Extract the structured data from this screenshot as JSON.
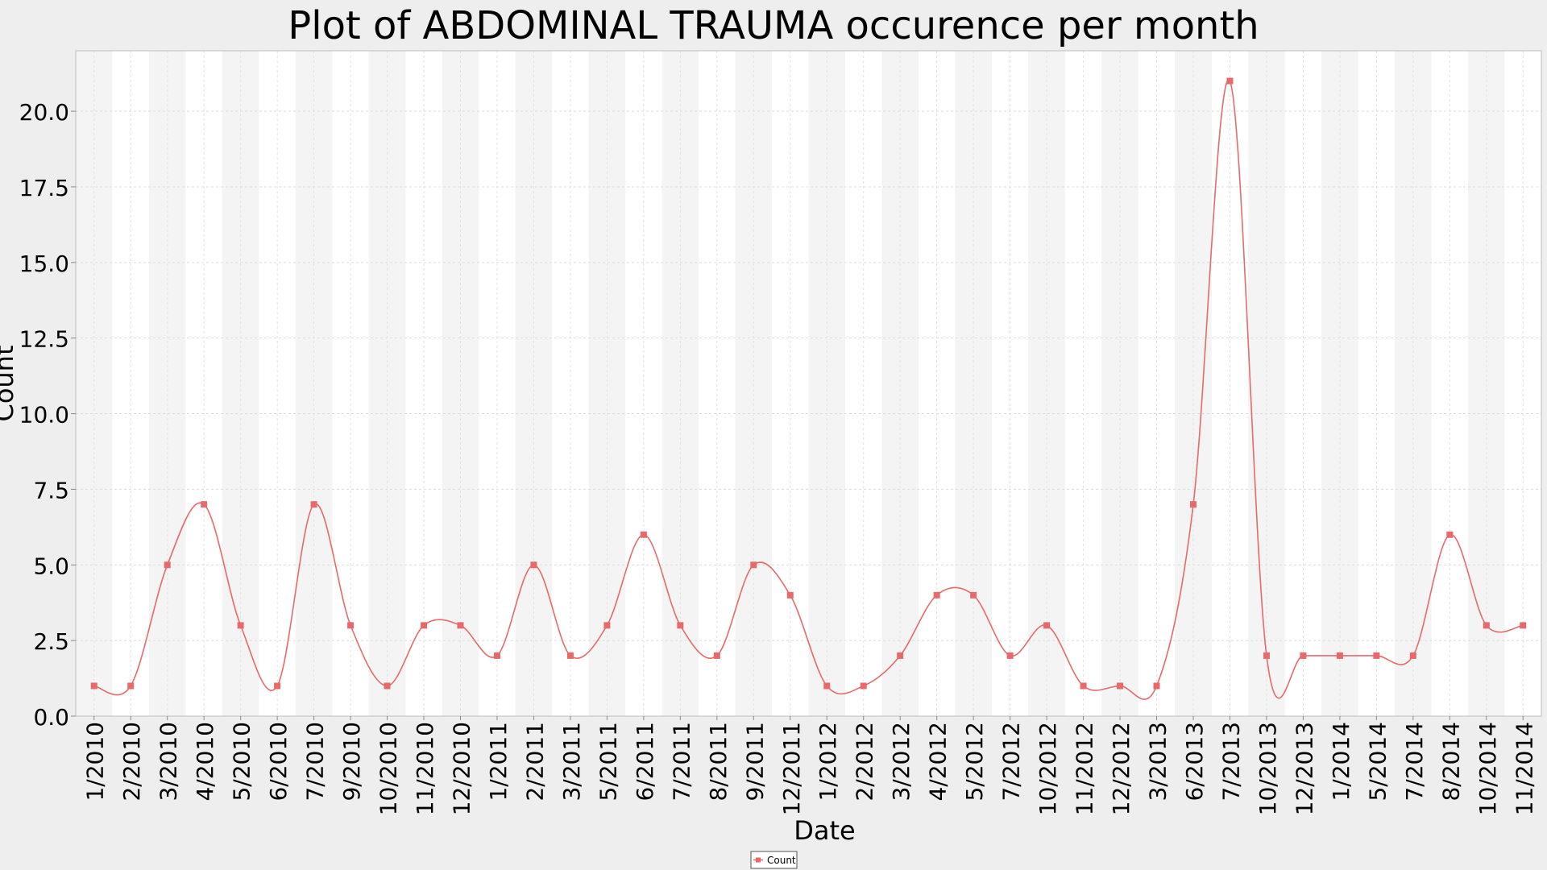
{
  "chart_data": {
    "type": "line",
    "title": "Plot of ABDOMINAL TRAUMA occurence per month",
    "xlabel": "Date",
    "ylabel": "Count",
    "ylim": [
      0,
      22
    ],
    "y_ticks": [
      "0.0",
      "2.5",
      "5.0",
      "7.5",
      "10.0",
      "12.5",
      "15.0",
      "17.5",
      "20.0"
    ],
    "grid": true,
    "legend_position": "bottom-center",
    "categories": [
      "1/2010",
      "2/2010",
      "3/2010",
      "4/2010",
      "5/2010",
      "6/2010",
      "7/2010",
      "9/2010",
      "10/2010",
      "11/2010",
      "12/2010",
      "1/2011",
      "2/2011",
      "3/2011",
      "5/2011",
      "6/2011",
      "7/2011",
      "8/2011",
      "9/2011",
      "12/2011",
      "1/2012",
      "2/2012",
      "3/2012",
      "4/2012",
      "5/2012",
      "7/2012",
      "10/2012",
      "11/2012",
      "12/2012",
      "3/2013",
      "6/2013",
      "7/2013",
      "10/2013",
      "12/2013",
      "1/2014",
      "5/2014",
      "7/2014",
      "8/2014",
      "10/2014",
      "11/2014"
    ],
    "series": [
      {
        "name": "Count",
        "color": "#e8696b",
        "values": [
          1,
          1,
          5,
          7,
          3,
          1,
          7,
          3,
          1,
          3,
          3,
          2,
          5,
          2,
          3,
          6,
          3,
          2,
          5,
          4,
          1,
          1,
          2,
          4,
          4,
          2,
          3,
          1,
          1,
          1,
          7,
          21,
          2,
          2,
          2,
          2,
          2,
          6,
          3,
          3
        ]
      }
    ]
  }
}
